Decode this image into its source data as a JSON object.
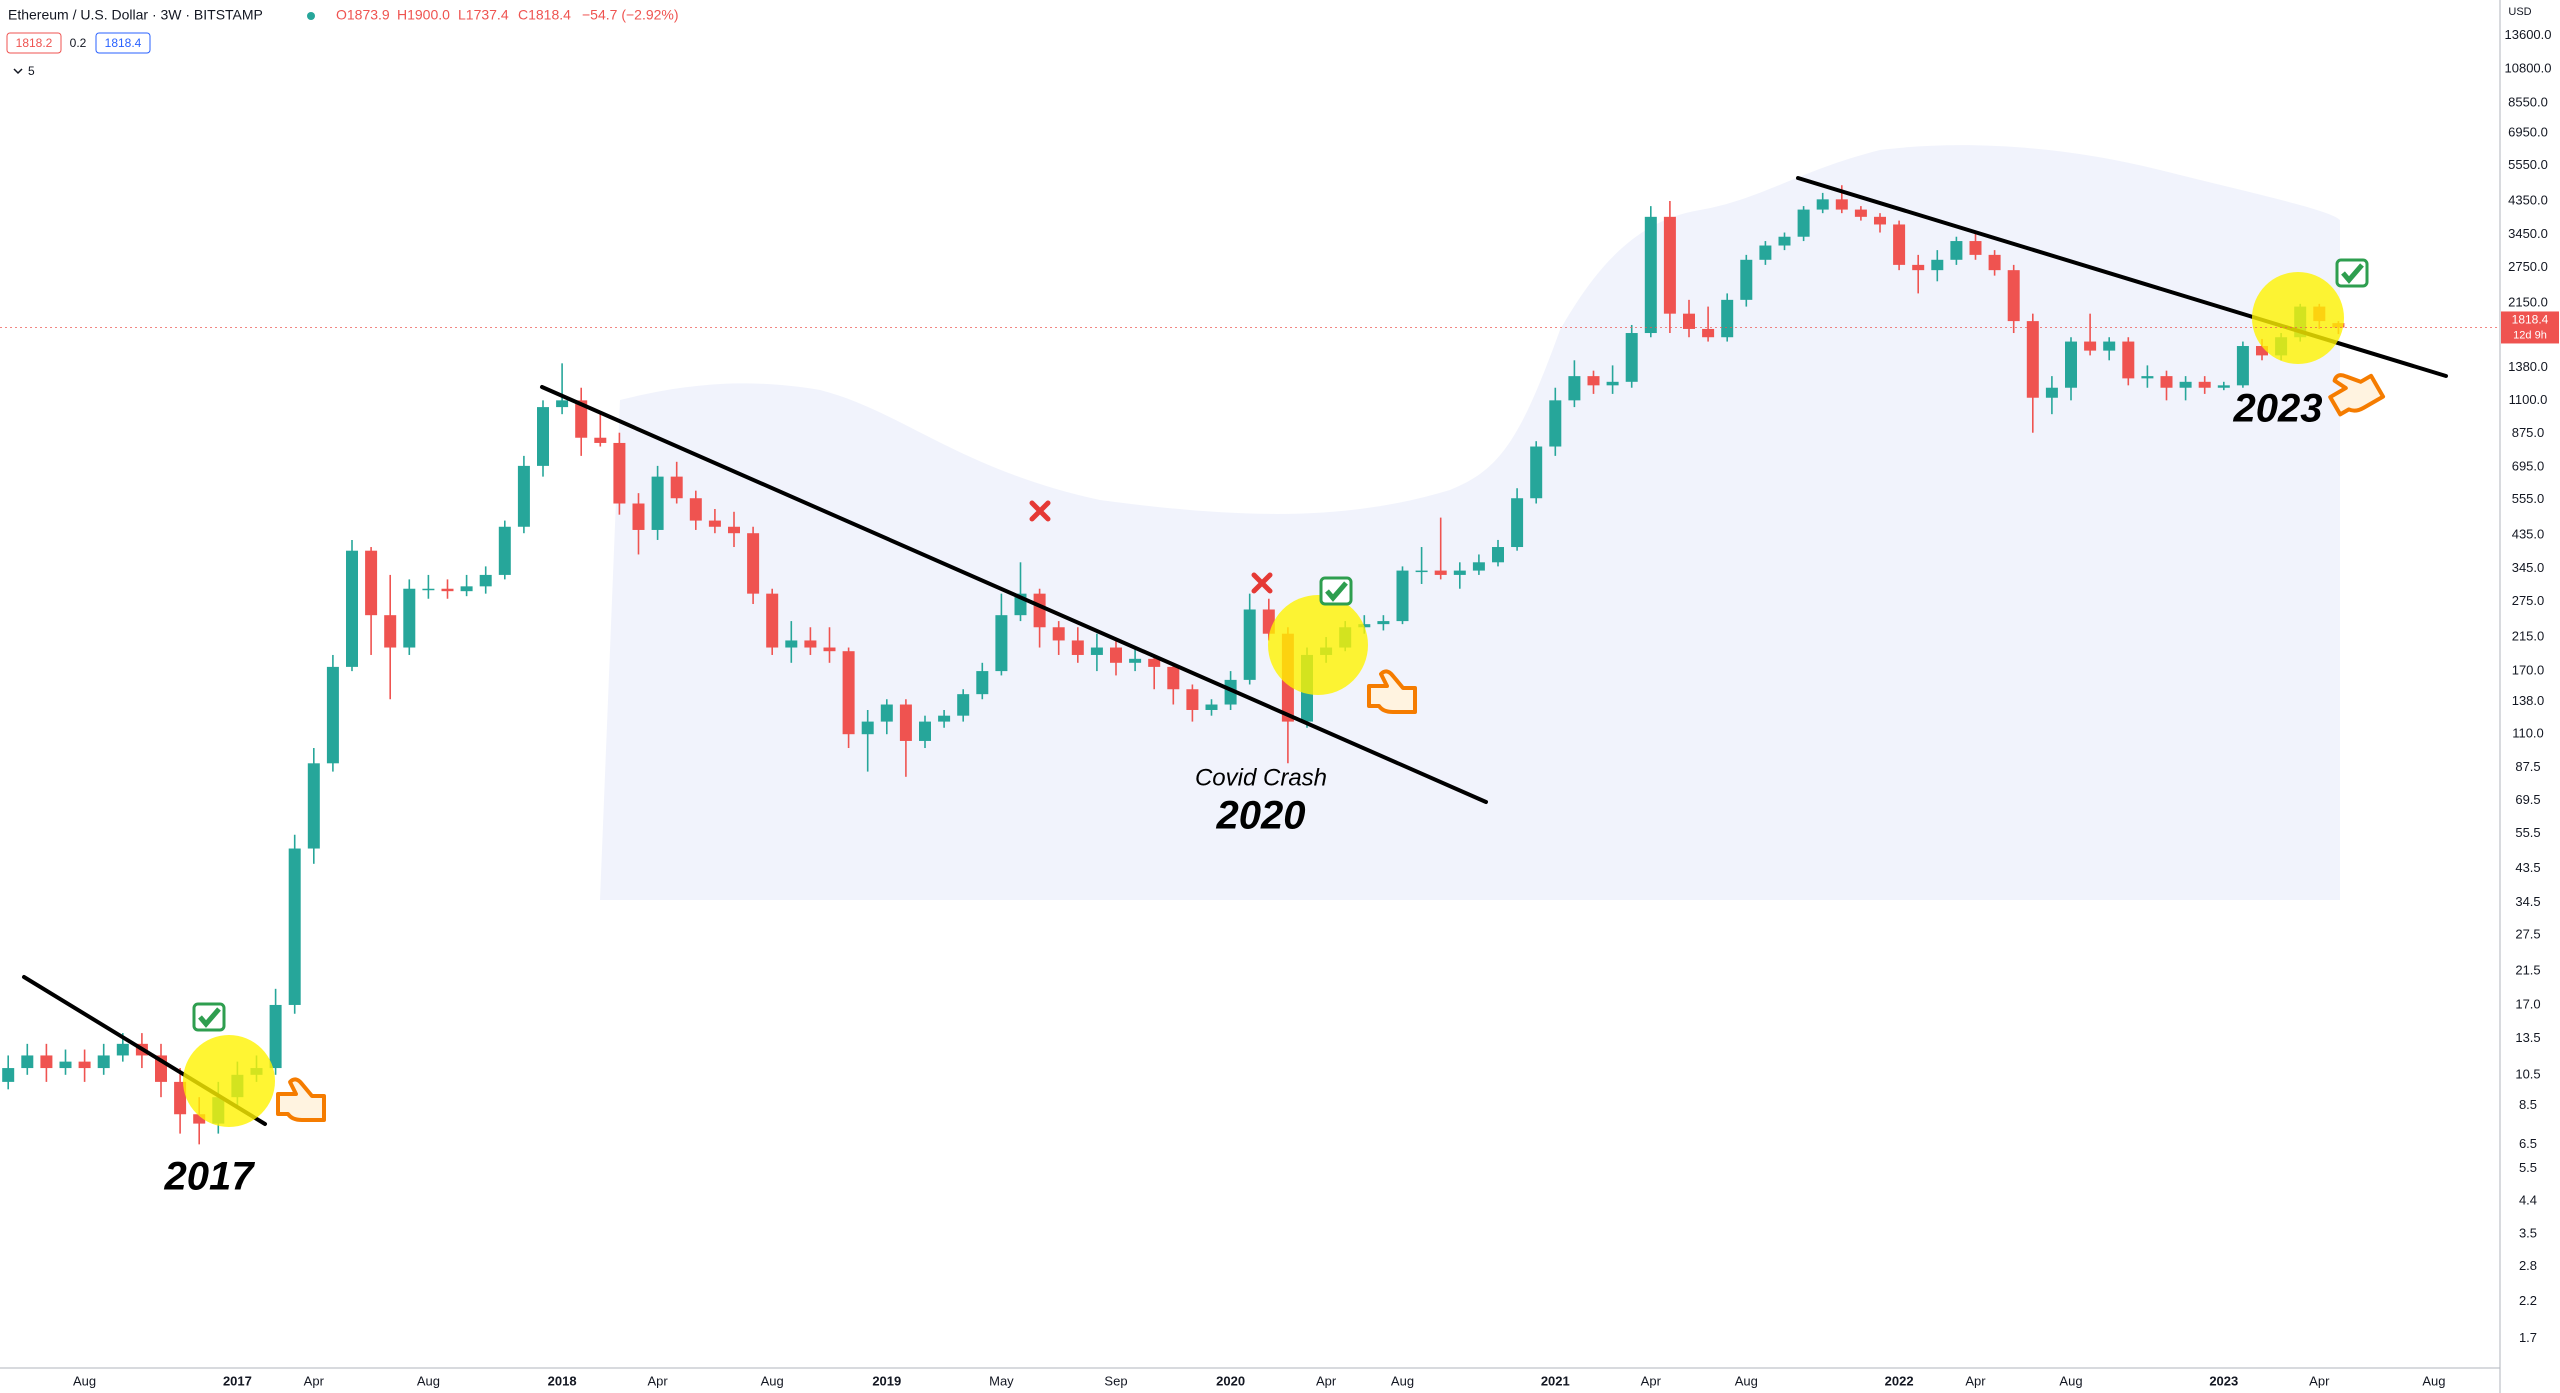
{
  "header": {
    "symbol": "Ethereum / U.S. Dollar · 3W · BITSTAMP",
    "ohlc": [
      "O1873.9",
      "H1900.0",
      "L1737.4",
      "C1818.4",
      "−54.7 (−2.92%)"
    ],
    "bid": "1818.2",
    "spread": "0.2",
    "ask": "1818.4",
    "indicators": "5"
  },
  "chart_data": {
    "type": "candlestick",
    "categories": [
      null,
      null,
      null,
      null,
      "Aug",
      null,
      null,
      null,
      null,
      null,
      null,
      null,
      "2017",
      null,
      null,
      null,
      "Apr",
      null,
      null,
      null,
      null,
      null,
      "Aug",
      null,
      null,
      null,
      null,
      null,
      null,
      "2018",
      null,
      null,
      null,
      null,
      "Apr",
      null,
      null,
      null,
      null,
      null,
      "Aug",
      null,
      null,
      null,
      null,
      null,
      "2019",
      null,
      null,
      null,
      null,
      null,
      "May",
      null,
      null,
      null,
      null,
      null,
      "Sep",
      null,
      null,
      null,
      null,
      null,
      "2020",
      null,
      null,
      null,
      null,
      "Apr",
      null,
      null,
      null,
      "Aug",
      null,
      null,
      null,
      null,
      null,
      null,
      null,
      "2021",
      null,
      null,
      null,
      null,
      "Apr",
      null,
      null,
      null,
      null,
      "Aug",
      null,
      null,
      null,
      null,
      null,
      null,
      null,
      "2022",
      null,
      null,
      null,
      "Apr",
      null,
      null,
      null,
      null,
      "Aug",
      null,
      null,
      null,
      null,
      null,
      null,
      null,
      "2023",
      null,
      null,
      null,
      null,
      "Apr",
      null,
      null,
      null,
      null,
      null,
      "Aug",
      null,
      null,
      null
    ],
    "open": [
      10,
      11,
      12,
      11,
      11.5,
      11,
      12,
      13,
      12,
      10,
      8,
      7.5,
      9,
      10.5,
      11,
      17,
      50,
      90,
      175,
      390,
      250,
      200,
      300,
      300,
      295,
      305,
      330,
      460,
      700,
      1050,
      1100,
      850,
      820,
      540,
      450,
      650,
      560,
      480,
      460,
      440,
      290,
      200,
      210,
      200,
      195,
      110,
      120,
      135,
      105,
      120,
      125,
      145,
      170,
      250,
      290,
      230,
      210,
      190,
      200,
      180,
      185,
      175,
      150,
      130,
      135,
      160,
      260,
      220,
      120,
      190,
      200,
      230,
      235,
      240,
      340,
      340,
      330,
      340,
      360,
      400,
      560,
      800,
      1100,
      1300,
      1220,
      1250,
      1750,
      3900,
      2000,
      1800,
      1700,
      2200,
      2900,
      3200,
      3400,
      4100,
      4400,
      4100,
      3900,
      3700,
      2800,
      2700,
      2900,
      3300,
      3000,
      2700,
      1900,
      1120,
      1200,
      1650,
      1550,
      1650,
      1280,
      1300,
      1200,
      1250,
      1200,
      1220,
      1600,
      1500,
      1700,
      2100,
      1873.9,
      null,
      null,
      null,
      null,
      null,
      null,
      null,
      null
    ],
    "high": [
      12,
      13,
      13,
      12.5,
      12.5,
      13,
      14,
      14,
      13,
      11,
      9,
      10,
      11.5,
      12,
      19,
      55,
      100,
      190,
      420,
      400,
      330,
      320,
      330,
      320,
      330,
      350,
      480,
      750,
      1100,
      1420,
      1200,
      1000,
      880,
      580,
      700,
      720,
      590,
      520,
      510,
      460,
      300,
      240,
      230,
      230,
      200,
      130,
      140,
      140,
      125,
      130,
      150,
      180,
      290,
      360,
      300,
      240,
      230,
      220,
      210,
      200,
      190,
      180,
      155,
      140,
      170,
      290,
      280,
      230,
      200,
      215,
      240,
      250,
      250,
      350,
      400,
      490,
      360,
      380,
      420,
      600,
      830,
      1200,
      1450,
      1350,
      1400,
      1850,
      4200,
      4350,
      2200,
      2100,
      2300,
      3000,
      3300,
      3500,
      4200,
      4600,
      4850,
      4200,
      4000,
      3800,
      3000,
      3100,
      3400,
      3500,
      3100,
      2800,
      2000,
      1300,
      1700,
      2000,
      1700,
      1700,
      1400,
      1350,
      1300,
      1300,
      1250,
      1650,
      1680,
      1750,
      2140,
      2140,
      1900,
      null,
      null,
      null,
      null,
      null,
      null,
      null,
      null
    ],
    "low": [
      9.5,
      10.5,
      10,
      10.5,
      10,
      10.5,
      11.5,
      11,
      9,
      7,
      6.5,
      7,
      8.5,
      10,
      10.5,
      16,
      45,
      85,
      170,
      190,
      140,
      190,
      280,
      280,
      285,
      290,
      320,
      440,
      650,
      1000,
      750,
      800,
      500,
      380,
      420,
      540,
      450,
      440,
      400,
      270,
      190,
      180,
      190,
      180,
      100,
      85,
      110,
      82,
      100,
      115,
      120,
      140,
      165,
      240,
      200,
      190,
      180,
      170,
      165,
      170,
      150,
      135,
      120,
      125,
      130,
      155,
      210,
      90,
      115,
      180,
      195,
      220,
      225,
      235,
      310,
      320,
      300,
      330,
      350,
      390,
      540,
      750,
      1050,
      1150,
      1150,
      1200,
      1700,
      1750,
      1700,
      1650,
      1650,
      2100,
      2800,
      3100,
      3300,
      4000,
      4000,
      3800,
      3500,
      2700,
      2300,
      2500,
      2800,
      2900,
      2600,
      1750,
      880,
      1000,
      1100,
      1500,
      1450,
      1220,
      1200,
      1100,
      1100,
      1150,
      1180,
      1200,
      1450,
      1450,
      1650,
      1800,
      1737.4,
      null,
      null,
      null,
      null,
      null,
      null,
      null,
      null
    ],
    "close": [
      11,
      12,
      11,
      11.5,
      11,
      12,
      13,
      12,
      10,
      8,
      7.5,
      9,
      10.5,
      11,
      17,
      50,
      90,
      175,
      390,
      250,
      200,
      300,
      300,
      295,
      305,
      330,
      460,
      700,
      1050,
      1100,
      850,
      820,
      540,
      450,
      650,
      560,
      480,
      460,
      440,
      290,
      200,
      210,
      200,
      195,
      110,
      120,
      135,
      105,
      120,
      125,
      145,
      170,
      250,
      290,
      230,
      210,
      190,
      200,
      180,
      185,
      175,
      150,
      130,
      135,
      160,
      260,
      220,
      120,
      190,
      200,
      230,
      235,
      240,
      340,
      340,
      330,
      340,
      360,
      400,
      560,
      800,
      1100,
      1300,
      1220,
      1250,
      1750,
      3900,
      2000,
      1800,
      1700,
      2200,
      2900,
      3200,
      3400,
      4100,
      4400,
      4100,
      3900,
      3700,
      2800,
      2700,
      2900,
      3300,
      3000,
      2700,
      1900,
      1120,
      1200,
      1650,
      1550,
      1650,
      1280,
      1300,
      1200,
      1250,
      1200,
      1220,
      1600,
      1500,
      1700,
      2100,
      1900,
      1818.4,
      null,
      null,
      null,
      null,
      null,
      null,
      null,
      null
    ],
    "up_color": "#26a69a",
    "down_color": "#ef5350",
    "log_scale": true,
    "ylim": [
      1.39,
      17400
    ],
    "yticks": [
      {
        "value": 13600,
        "label": "13600.0"
      },
      {
        "value": 10800,
        "label": "10800.0"
      },
      {
        "value": 8550,
        "label": "8550.0"
      },
      {
        "value": 6950,
        "label": "6950.0"
      },
      {
        "value": 5550,
        "label": "5550.0"
      },
      {
        "value": 4350,
        "label": "4350.0"
      },
      {
        "value": 3450,
        "label": "3450.0"
      },
      {
        "value": 2750,
        "label": "2750.0"
      },
      {
        "value": 2150,
        "label": "2150.0"
      },
      {
        "value": 1380,
        "label": "1380.0"
      },
      {
        "value": 1100,
        "label": "1100.0"
      },
      {
        "value": 875,
        "label": "875.0"
      },
      {
        "value": 695,
        "label": "695.0"
      },
      {
        "value": 555,
        "label": "555.0"
      },
      {
        "value": 435,
        "label": "435.0"
      },
      {
        "value": 345,
        "label": "345.0"
      },
      {
        "value": 275,
        "label": "275.0"
      },
      {
        "value": 215,
        "label": "215.0"
      },
      {
        "value": 170,
        "label": "170.0"
      },
      {
        "value": 138,
        "label": "138.0"
      },
      {
        "value": 110,
        "label": "110.0"
      },
      87.5,
      69.5,
      55.5,
      43.5,
      34.5,
      27.5,
      21.5,
      {
        "value": 17,
        "label": "17.0"
      },
      13.5,
      10.5,
      8.5,
      6.5,
      5.5,
      4.4,
      3.5,
      2.8,
      2.2,
      1.7
    ],
    "y_unit": "USD",
    "last_price_label": "1818.4",
    "countdown": "12d 9h",
    "annotations": [
      "2017",
      "Covid Crash",
      "2020",
      "2023"
    ]
  }
}
